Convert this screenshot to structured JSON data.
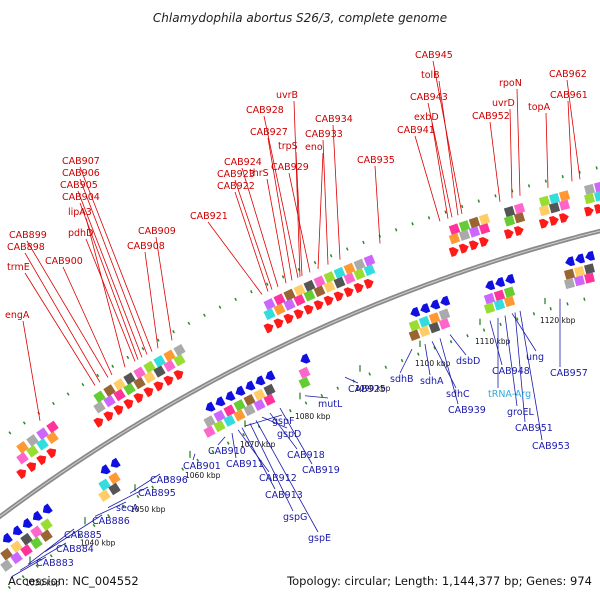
{
  "title": "Chlamydophila abortus S26/3, complete genome",
  "footer": {
    "accession": "Accession: NC_004552",
    "summary": "Topology: circular; Length: 1,144,377 bp; Genes: 974"
  },
  "colors": {
    "forward": "#ff1a1a",
    "reverse": "#1010e0",
    "trna": "#33aadd",
    "backbone": "#8a8a8a",
    "dots": "#2a8a2a"
  },
  "ticks": [
    "1030 kbp",
    "1040 kbp",
    "1050 kbp",
    "1060 kbp",
    "1070 kbp",
    "1080 kbp",
    "1090 kbp",
    "1100 kbp",
    "1110 kbp",
    "1120 kbp"
  ],
  "forward_labels": [
    "engA",
    "trmE",
    "CAB898",
    "CAB899",
    "CAB900",
    "lipA3",
    "pdhD",
    "CAB904",
    "CAB905",
    "CAB906",
    "CAB907",
    "CAB908",
    "CAB909",
    "CAB921",
    "CAB922",
    "CAB923",
    "CAB924",
    "thrS",
    "CAB927",
    "CAB928",
    "uvrB",
    "trpS",
    "CAB929",
    "eno",
    "CAB933",
    "CAB934",
    "CAB935",
    "CAB941",
    "exbD",
    "CAB943",
    "tolB",
    "CAB945",
    "CAB952",
    "uvrD",
    "rpoN",
    "topA",
    "CAB961",
    "CAB962"
  ],
  "reverse_labels": [
    "CAB883",
    "CAB884",
    "CAB885",
    "CAB886",
    "secA",
    "CAB895",
    "CAB896",
    "CAB901",
    "CAB910",
    "gspF",
    "CAB911",
    "CAB912",
    "CAB913",
    "gspG",
    "gspE",
    "gspD",
    "CAB918",
    "CAB919",
    "mutL",
    "CAB925",
    "sdhB",
    "sdhA",
    "sdhC",
    "CAB939",
    "dsbD",
    "CAB948",
    "tRNA-Arg",
    "groEL",
    "ung",
    "CAB951",
    "CAB953",
    "CAB957"
  ],
  "trna_labels": [
    "tRNA-Arg"
  ]
}
